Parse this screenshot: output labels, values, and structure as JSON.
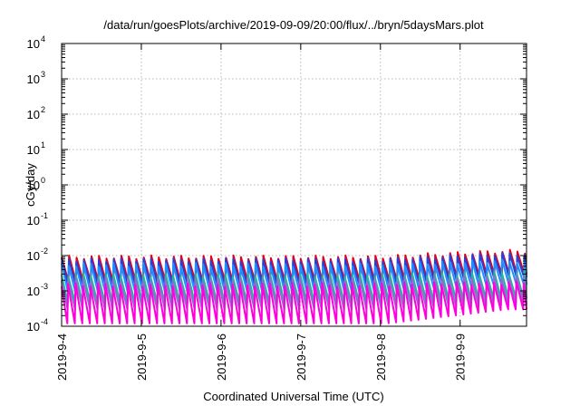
{
  "chart_data": {
    "type": "line",
    "title": "/data/run/goesPlots/archive/2019-09-09/20:00/flux/../bryn/5daysMars.plot",
    "xlabel": "Coordinated Universal Time (UTC)",
    "ylabel": "cGy/day",
    "yscale": "log",
    "ylim": [
      0.0001,
      10000
    ],
    "y_ticks": [
      {
        "base": "10",
        "exp": "-4"
      },
      {
        "base": "10",
        "exp": "-3"
      },
      {
        "base": "10",
        "exp": "-2"
      },
      {
        "base": "10",
        "exp": "-1"
      },
      {
        "base": "10",
        "exp": "0"
      },
      {
        "base": "10",
        "exp": "1"
      },
      {
        "base": "10",
        "exp": "2"
      },
      {
        "base": "10",
        "exp": "3"
      },
      {
        "base": "10",
        "exp": "4"
      }
    ],
    "xlim": [
      "2019-09-04 00:00",
      "2019-09-09 20:00"
    ],
    "x_ticks": [
      "2019-9-4",
      "2019-9-5",
      "2019-9-6",
      "2019-9-7",
      "2019-9-8",
      "2019-9-9"
    ],
    "grid": true,
    "legend": "none",
    "sawtooth_period_hours": 2.25,
    "series": [
      {
        "color": "#e3001b",
        "peak": 0.009,
        "low": 0.0018,
        "late_peak": 0.013,
        "late_low": 0.003
      },
      {
        "color": "#2b3fd6",
        "peak": 0.0075,
        "low": 0.0014,
        "late_peak": 0.011,
        "late_low": 0.0024
      },
      {
        "color": "#1f8fff",
        "peak": 0.0055,
        "low": 0.0009,
        "late_peak": 0.007,
        "late_low": 0.0015
      },
      {
        "color": "#22b5a0",
        "peak": 0.0028,
        "low": 0.00045,
        "late_peak": 0.0032,
        "late_low": 0.0006
      },
      {
        "color": "#8e6fd0",
        "peak": 0.0021,
        "low": 0.0003,
        "late_peak": 0.0024,
        "late_low": 0.0004
      },
      {
        "color": "#ff00dd",
        "peak": 0.0015,
        "low": 0.00012,
        "late_peak": 0.0017,
        "late_low": 0.0003
      }
    ]
  }
}
